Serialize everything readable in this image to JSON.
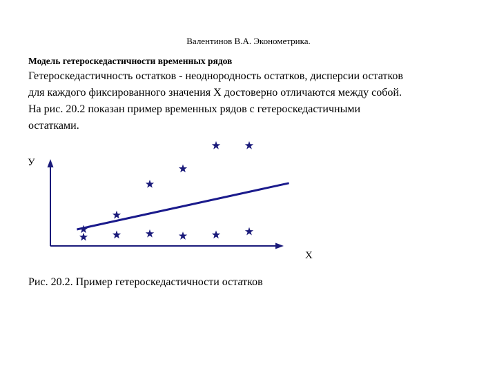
{
  "header": {
    "text": "Валентинов В.А. Эконометрика."
  },
  "section": {
    "title": "Модель гетероскедастичности временных рядов"
  },
  "body": {
    "line1": "Гетероскедастичность остатков - неоднородность остатков, дисперсии остатков",
    "line2": "для каждого фиксированного значения X достоверно отличаются между собой.",
    "line3": "На рис. 20.2 показан пример временных рядов с гетероскедастичными",
    "line4": "остатками."
  },
  "figure": {
    "y_label": "У",
    "x_label": "X",
    "caption": "Рис. 20.2. Пример гетероскедастичности остатков",
    "star_color": "#1a1a7a",
    "line_color": "#1a1a8c",
    "axis_color": "#1a1a7a"
  },
  "chart_data": {
    "type": "scatter",
    "xlabel": "X",
    "ylabel": "У",
    "points": [
      [
        1,
        0.8
      ],
      [
        1,
        1.5
      ],
      [
        2,
        1.0
      ],
      [
        2,
        2.8
      ],
      [
        3,
        1.1
      ],
      [
        3,
        5.6
      ],
      [
        4,
        0.9
      ],
      [
        4,
        7.0
      ],
      [
        5,
        1.0
      ],
      [
        5,
        9.1
      ],
      [
        6,
        1.3
      ],
      [
        6,
        9.1
      ]
    ],
    "trend_line": {
      "x": [
        0.8,
        7.2
      ],
      "y": [
        1.5,
        5.7
      ]
    },
    "xlim": [
      0,
      8
    ],
    "ylim": [
      0,
      10
    ]
  }
}
